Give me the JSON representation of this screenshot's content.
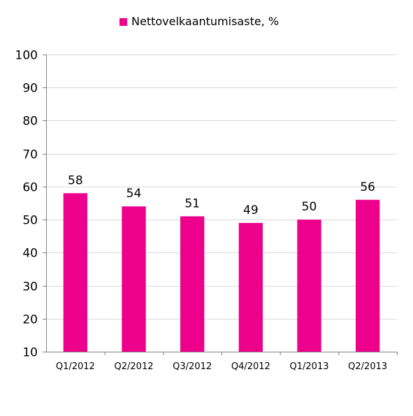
{
  "legend": {
    "label": "Nettovelkaantumisaste, %"
  },
  "colors": {
    "bar": "#ec008c",
    "grid": "#d9d9d9",
    "axis": "#7f7f7f",
    "text": "#000000"
  },
  "chart_data": {
    "type": "bar",
    "title": "",
    "xlabel": "",
    "ylabel": "",
    "categories": [
      "Q1/2012",
      "Q2/2012",
      "Q3/2012",
      "Q4/2012",
      "Q1/2013",
      "Q2/2013"
    ],
    "series": [
      {
        "name": "Nettovelkaantumisaste, %",
        "values": [
          58,
          54,
          51,
          49,
          50,
          56
        ]
      }
    ],
    "data_labels": [
      "58",
      "54",
      "51",
      "49",
      "50",
      "56"
    ],
    "ylim": [
      10,
      100
    ],
    "yticks": [
      10,
      20,
      30,
      40,
      50,
      60,
      70,
      80,
      90,
      100
    ],
    "grid": true,
    "legend_position": "top-center"
  }
}
